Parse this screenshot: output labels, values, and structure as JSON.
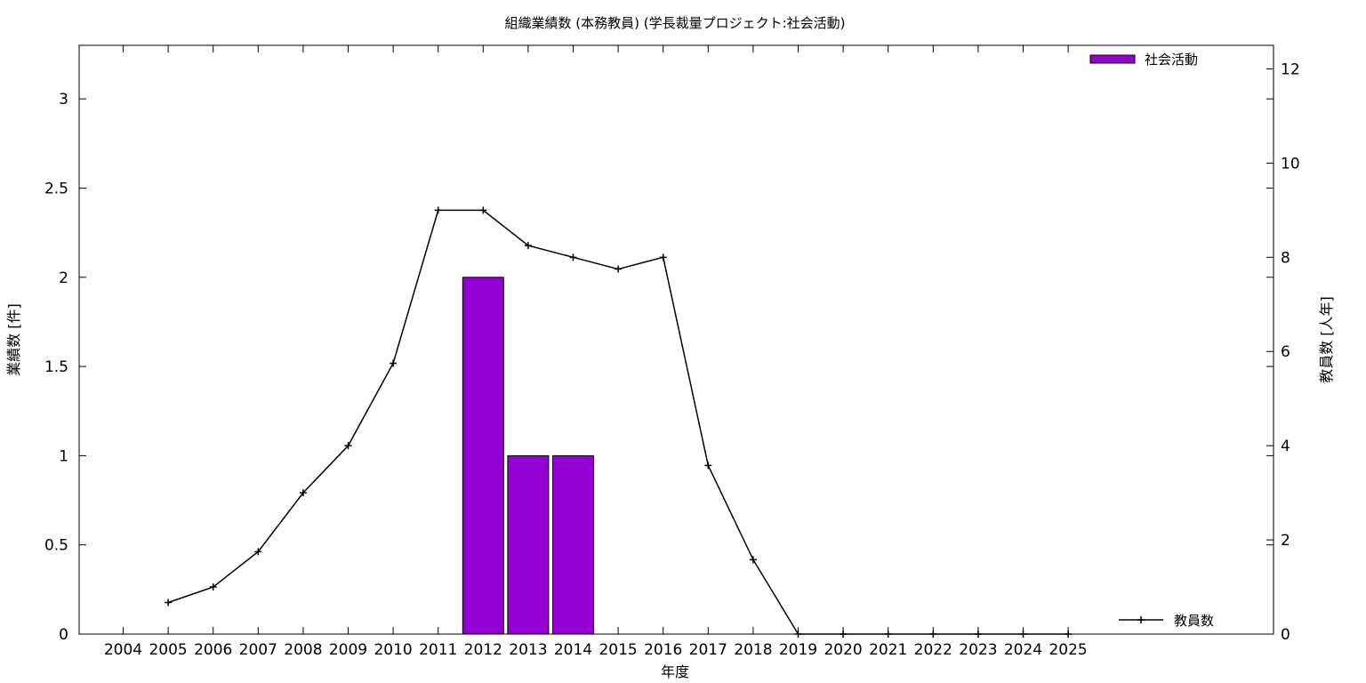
{
  "chart_data": {
    "type": "bar",
    "title": "組織業績数 (本務教員) (学長裁量プロジェクト:社会活動)",
    "xlabel": "年度",
    "ylabel": "業績数 [件]",
    "y2label": "教員数 [人年]",
    "categories": [
      "2004",
      "2005",
      "2006",
      "2007",
      "2008",
      "2009",
      "2010",
      "2011",
      "2012",
      "2013",
      "2014",
      "2015",
      "2016",
      "2017",
      "2018",
      "2019",
      "2020",
      "2021",
      "2022",
      "2023",
      "2024",
      "2025"
    ],
    "ylim": [
      0,
      3.3
    ],
    "y2lim": [
      0,
      12.5
    ],
    "yticks": [
      "0",
      "0.5",
      "1",
      "1.5",
      "2",
      "2.5",
      "3"
    ],
    "y2ticks": [
      "0",
      "2",
      "4",
      "6",
      "8",
      "10",
      "12"
    ],
    "bar_series": {
      "name": "社会活動",
      "color": "#9400d3",
      "values": [
        0,
        0,
        0,
        0,
        0,
        0,
        0,
        0,
        2,
        1,
        1,
        0,
        0,
        0,
        0,
        0,
        0,
        0,
        0,
        0,
        0,
        0
      ]
    },
    "line_series": {
      "name": "教員数",
      "color": "#000000",
      "x": [
        "2005",
        "2006",
        "2007",
        "2008",
        "2009",
        "2010",
        "2011",
        "2012",
        "2013",
        "2014",
        "2015",
        "2016",
        "2017",
        "2018",
        "2019",
        "2020",
        "2021",
        "2022",
        "2023",
        "2024",
        "2025"
      ],
      "values": [
        0.67,
        1.0,
        1.75,
        3.0,
        4.0,
        5.75,
        9.0,
        9.0,
        8.25,
        8.0,
        7.75,
        8.0,
        3.58,
        1.58,
        0,
        0,
        0,
        0,
        0,
        0,
        0
      ]
    },
    "legend": {
      "bar_position": "top-right",
      "line_position": "bottom-right"
    },
    "grid": false
  }
}
